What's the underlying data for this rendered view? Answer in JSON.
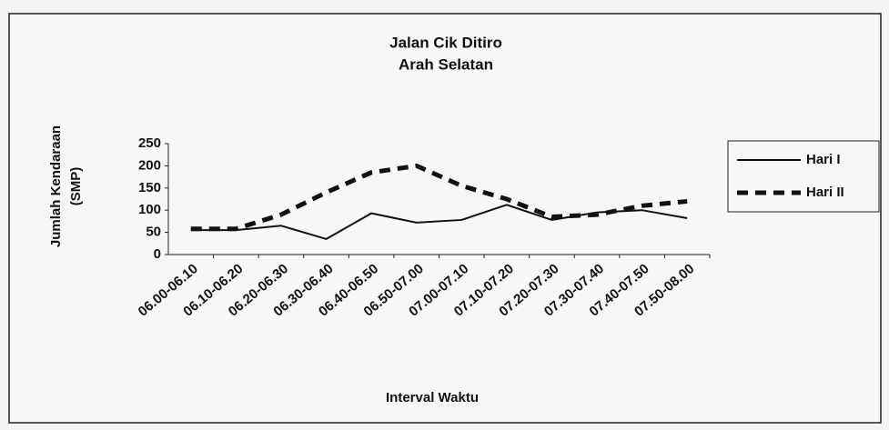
{
  "chart_data": {
    "type": "line",
    "title": [
      "Jalan Cik Ditiro",
      "Arah Selatan"
    ],
    "y_label": [
      "Jumlah Kendaraan",
      "(SMP)"
    ],
    "x_label": "Interval Waktu",
    "categories": [
      "06.00-06.10",
      "06.10-06.20",
      "06.20-06.30",
      "06.30-06.40",
      "06.40-06.50",
      "06.50-07.00",
      "07.00-07.10",
      "07.10-07.20",
      "07.20-07.30",
      "07.30-07.40",
      "07.40-07.50",
      "07.50-08.00"
    ],
    "series": [
      {
        "name": "Hari I",
        "color": "#111111",
        "dash": false,
        "values": [
          55,
          55,
          65,
          35,
          93,
          72,
          78,
          112,
          78,
          95,
          100,
          82
        ]
      },
      {
        "name": "Hari II",
        "color": "#111111",
        "dash": true,
        "values": [
          58,
          58,
          90,
          140,
          185,
          200,
          155,
          125,
          85,
          90,
          110,
          120
        ]
      }
    ],
    "ylim": [
      0,
      250
    ],
    "yticks": [
      0,
      50,
      100,
      150,
      200,
      250
    ],
    "grid": false
  }
}
